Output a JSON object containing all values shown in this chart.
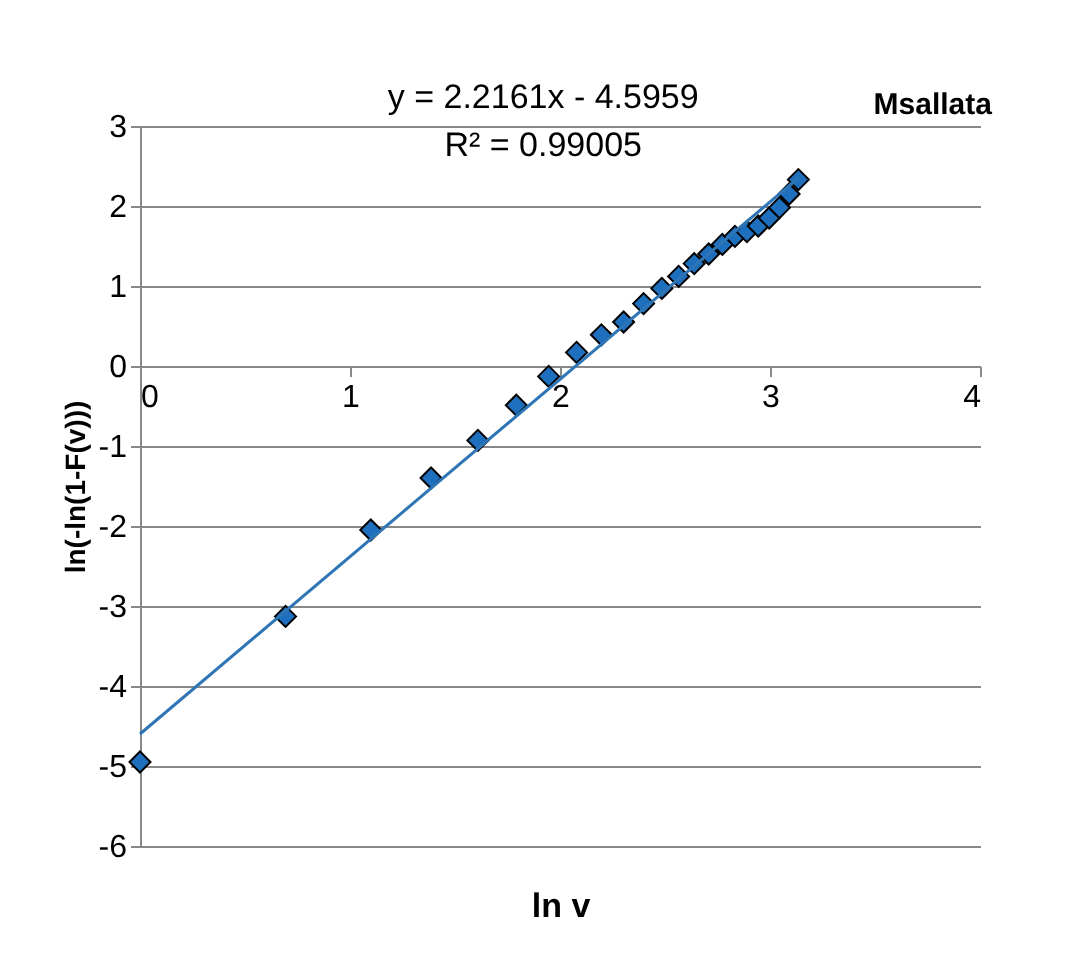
{
  "chart_data": {
    "type": "scatter",
    "title": "Msallata",
    "xlabel": "ln v",
    "ylabel": "ln(-ln(1-F(v)))",
    "annotations": [
      "y = 2.2161x - 4.5959",
      "R² = 0.99005"
    ],
    "xlim": [
      0,
      4
    ],
    "xticks": [
      0,
      1,
      2,
      3,
      4
    ],
    "ylim": [
      -6,
      3
    ],
    "yticks": [
      -6,
      -5,
      -4,
      -3,
      -2,
      -1,
      0,
      1,
      2,
      3
    ],
    "grid": "y",
    "series": [
      {
        "marker": "diamond",
        "color": "#1f6fbf",
        "x": [
          0,
          0.693,
          1.099,
          1.386,
          1.609,
          1.792,
          1.946,
          2.079,
          2.197,
          2.303,
          2.398,
          2.485,
          2.565,
          2.639,
          2.708,
          2.773,
          2.833,
          2.89,
          2.944,
          2.996,
          3.045,
          3.091,
          3.135
        ],
        "values": [
          -4.95,
          -3.13,
          -2.05,
          -1.4,
          -0.93,
          -0.49,
          -0.13,
          0.17,
          0.39,
          0.55,
          0.78,
          0.97,
          1.12,
          1.28,
          1.4,
          1.52,
          1.62,
          1.68,
          1.75,
          1.85,
          1.98,
          2.15,
          2.33
        ]
      },
      {
        "type": "line",
        "color": "#2e75b6",
        "x": [
          0,
          3.135
        ],
        "values": [
          -4.6,
          2.35
        ]
      }
    ]
  }
}
